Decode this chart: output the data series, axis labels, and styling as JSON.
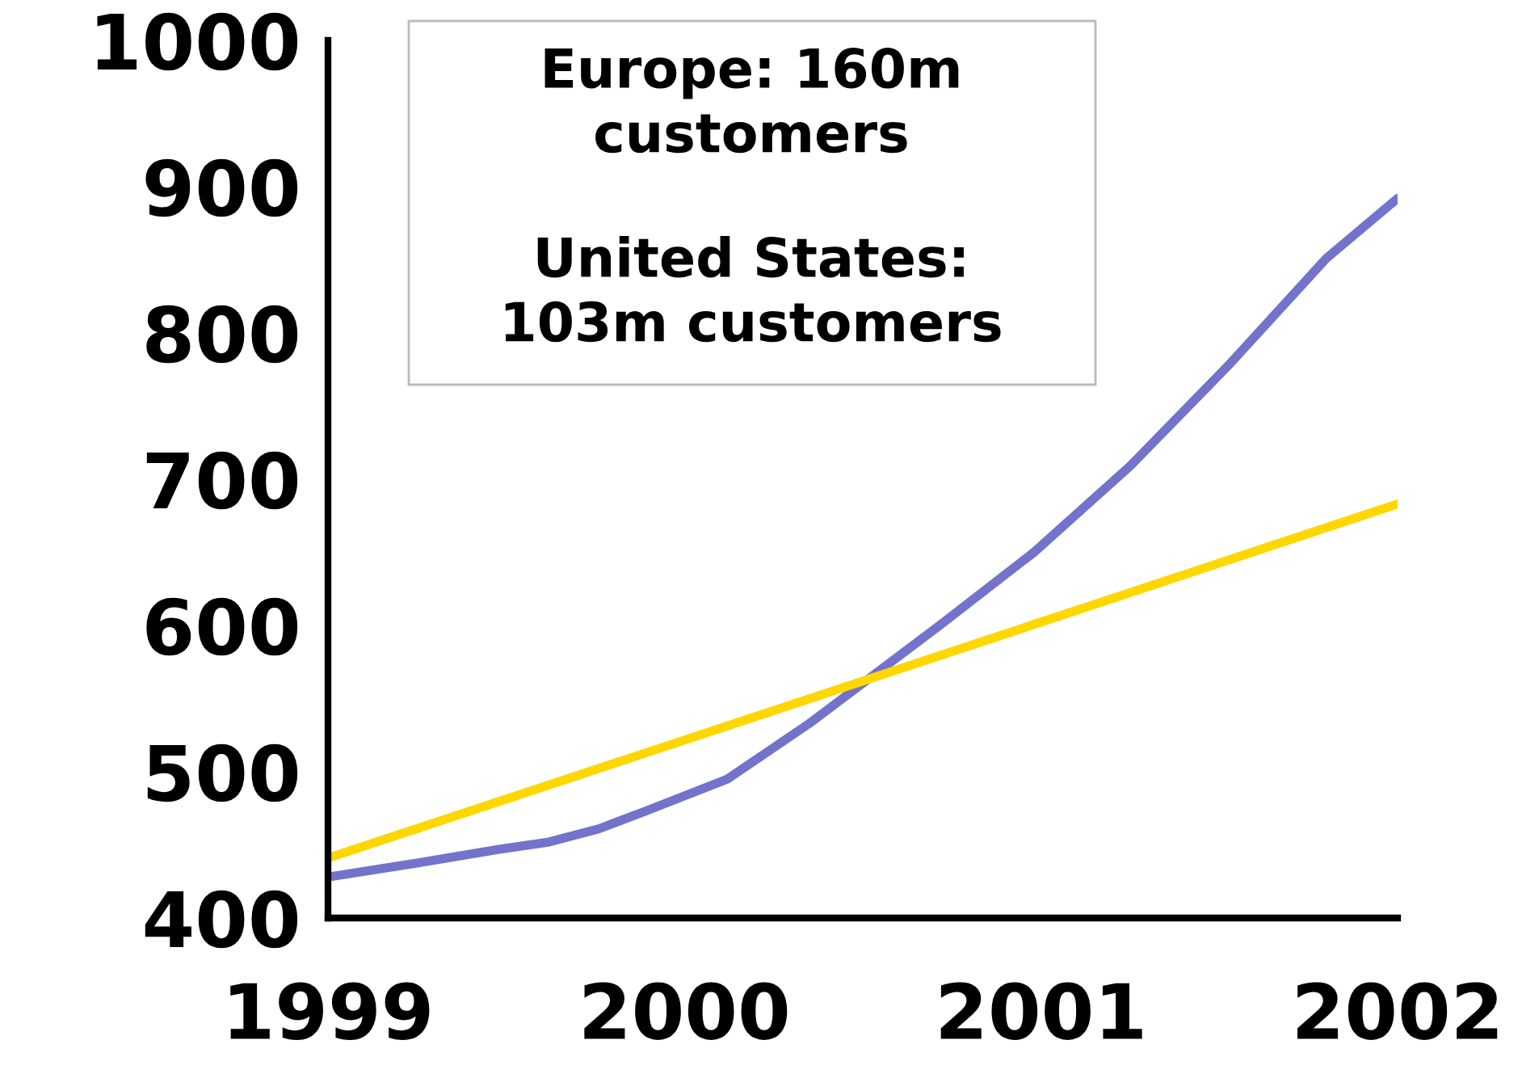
{
  "chart_data": {
    "type": "line",
    "series": [
      {
        "color": "#7373cc",
        "x": [
          1999,
          1999.21,
          1999.48,
          1999.62,
          1999.76,
          1999.89,
          2000.12,
          2000.35,
          2000.53,
          2000.71,
          2000.98,
          2001.25,
          2001.53,
          2001.8,
          2002
        ],
        "values": [
          428,
          436,
          447,
          452,
          461,
          473,
          495,
          533,
          566,
          599,
          650,
          709,
          779,
          851,
          892
        ]
      },
      {
        "color": "#ffd700",
        "x": [
          1999,
          2002
        ],
        "values": [
          441,
          683
        ]
      }
    ],
    "xlim": [
      1999,
      2002
    ],
    "xticks": [
      1999,
      2000,
      2001,
      2002
    ],
    "ylim": [
      400,
      1000
    ],
    "yticks": [
      400,
      500,
      600,
      700,
      800,
      900,
      1000
    ],
    "annotations": [
      "Europe: 160m\ncustomers",
      "United States:\n103m customers"
    ],
    "grid": false,
    "legend": false
  }
}
